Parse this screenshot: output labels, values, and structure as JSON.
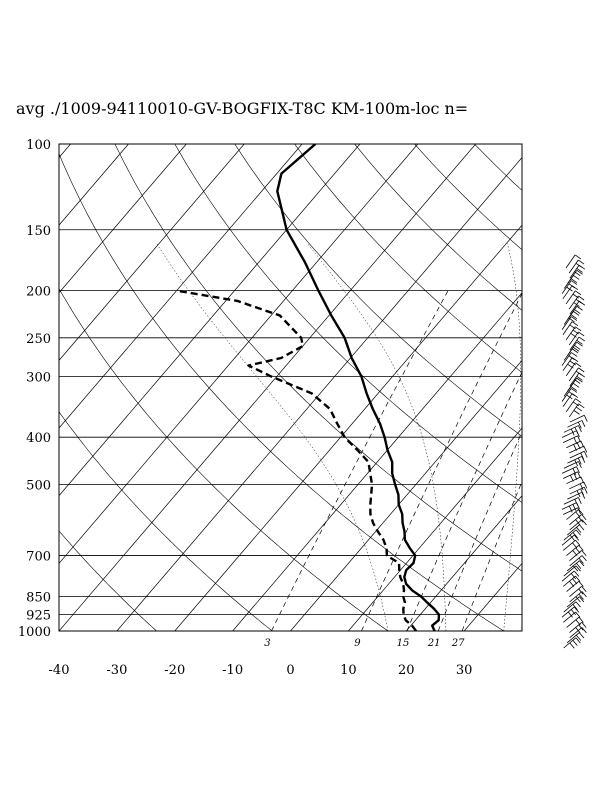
{
  "chart_data": {
    "type": "line",
    "title": "avg ./1009-94110010-GV-BOGFIX-T8C KM-100m-loc n=",
    "xlabel": "",
    "ylabel": "",
    "xlim": [
      -40,
      40
    ],
    "ylim": [
      1000,
      100
    ],
    "y_log_scale": true,
    "skew_deg_per_log_decade": 72,
    "pressure_ticks": [
      "100",
      "150",
      "200",
      "250",
      "300",
      "400",
      "500",
      "700",
      "850",
      "925",
      "1000"
    ],
    "pressure_tick_values": [
      100,
      150,
      200,
      250,
      300,
      400,
      500,
      700,
      850,
      925,
      1000
    ],
    "temperature_ticks": [
      "-40",
      "-30",
      "-20",
      "-10",
      "0",
      "10",
      "20",
      "30"
    ],
    "temperature_tick_values": [
      -40,
      -30,
      -20,
      -10,
      0,
      10,
      20,
      30
    ],
    "mixing_ratio_labels": [
      "3",
      "9",
      "15",
      "21",
      "27"
    ],
    "mixing_ratio_values": [
      3,
      9,
      15,
      21,
      27
    ],
    "isotherms_deg_c": [
      -130,
      -120,
      -110,
      -100,
      -90,
      -80,
      -70,
      -60,
      -50,
      -40,
      -30,
      -20,
      -10,
      0,
      10,
      20,
      30,
      40
    ],
    "dry_adiabats_theta_k": [
      250,
      270,
      290,
      310,
      330,
      350,
      370,
      390,
      410,
      430,
      450,
      470,
      490,
      510
    ],
    "moist_adiabats_theta_k": [
      290,
      300,
      310,
      320,
      330,
      340
    ],
    "grid": true,
    "series": [
      {
        "style": "solid",
        "points": [
          {
            "p": 1000,
            "t": 24.9
          },
          {
            "p": 975,
            "t": 23.7
          },
          {
            "p": 950,
            "t": 24.0
          },
          {
            "p": 925,
            "t": 23.2
          },
          {
            "p": 900,
            "t": 21.5
          },
          {
            "p": 875,
            "t": 19.5
          },
          {
            "p": 850,
            "t": 17.5
          },
          {
            "p": 825,
            "t": 15.0
          },
          {
            "p": 800,
            "t": 13.0
          },
          {
            "p": 775,
            "t": 11.7
          },
          {
            "p": 750,
            "t": 11.0
          },
          {
            "p": 725,
            "t": 11.2
          },
          {
            "p": 700,
            "t": 10.4
          },
          {
            "p": 675,
            "t": 8.3
          },
          {
            "p": 650,
            "t": 6.3
          },
          {
            "p": 625,
            "t": 5.0
          },
          {
            "p": 600,
            "t": 3.4
          },
          {
            "p": 575,
            "t": 2.0
          },
          {
            "p": 550,
            "t": 0.0
          },
          {
            "p": 525,
            "t": -1.5
          },
          {
            "p": 500,
            "t": -3.6
          },
          {
            "p": 475,
            "t": -5.7
          },
          {
            "p": 450,
            "t": -7.4
          },
          {
            "p": 425,
            "t": -10.0
          },
          {
            "p": 400,
            "t": -12.4
          },
          {
            "p": 375,
            "t": -15.2
          },
          {
            "p": 350,
            "t": -18.6
          },
          {
            "p": 325,
            "t": -22.0
          },
          {
            "p": 300,
            "t": -25.4
          },
          {
            "p": 275,
            "t": -29.8
          },
          {
            "p": 250,
            "t": -34.0
          },
          {
            "p": 225,
            "t": -39.6
          },
          {
            "p": 200,
            "t": -45.5
          },
          {
            "p": 175,
            "t": -52.0
          },
          {
            "p": 150,
            "t": -60.0
          },
          {
            "p": 125,
            "t": -67.3
          },
          {
            "p": 115,
            "t": -69.2
          },
          {
            "p": 100,
            "t": -67.7
          }
        ]
      },
      {
        "style": "dashed",
        "points": [
          {
            "p": 1000,
            "t": 21.7
          },
          {
            "p": 975,
            "t": 20.2
          },
          {
            "p": 950,
            "t": 18.3
          },
          {
            "p": 925,
            "t": 17.1
          },
          {
            "p": 900,
            "t": 16.2
          },
          {
            "p": 875,
            "t": 15.6
          },
          {
            "p": 850,
            "t": 14.4
          },
          {
            "p": 825,
            "t": 13.6
          },
          {
            "p": 800,
            "t": 12.5
          },
          {
            "p": 775,
            "t": 11.0
          },
          {
            "p": 750,
            "t": 9.8
          },
          {
            "p": 725,
            "t": 8.7
          },
          {
            "p": 700,
            "t": 5.5
          },
          {
            "p": 675,
            "t": 4.3
          },
          {
            "p": 650,
            "t": 2.6
          },
          {
            "p": 625,
            "t": 0.4
          },
          {
            "p": 600,
            "t": -1.7
          },
          {
            "p": 575,
            "t": -3.5
          },
          {
            "p": 550,
            "t": -4.9
          },
          {
            "p": 525,
            "t": -6.2
          },
          {
            "p": 500,
            "t": -7.6
          },
          {
            "p": 475,
            "t": -9.5
          },
          {
            "p": 450,
            "t": -11.5
          },
          {
            "p": 425,
            "t": -15.2
          },
          {
            "p": 400,
            "t": -19.3
          },
          {
            "p": 375,
            "t": -22.6
          },
          {
            "p": 350,
            "t": -26.0
          },
          {
            "p": 325,
            "t": -31.5
          },
          {
            "p": 300,
            "t": -41.0
          },
          {
            "p": 285,
            "t": -46.5
          },
          {
            "p": 275,
            "t": -42.0
          },
          {
            "p": 260,
            "t": -40.0
          },
          {
            "p": 250,
            "t": -41.5
          },
          {
            "p": 225,
            "t": -48.5
          },
          {
            "p": 210,
            "t": -58.0
          },
          {
            "p": 200,
            "t": -70.0
          }
        ]
      }
    ],
    "wind_barbs_count": 75
  }
}
